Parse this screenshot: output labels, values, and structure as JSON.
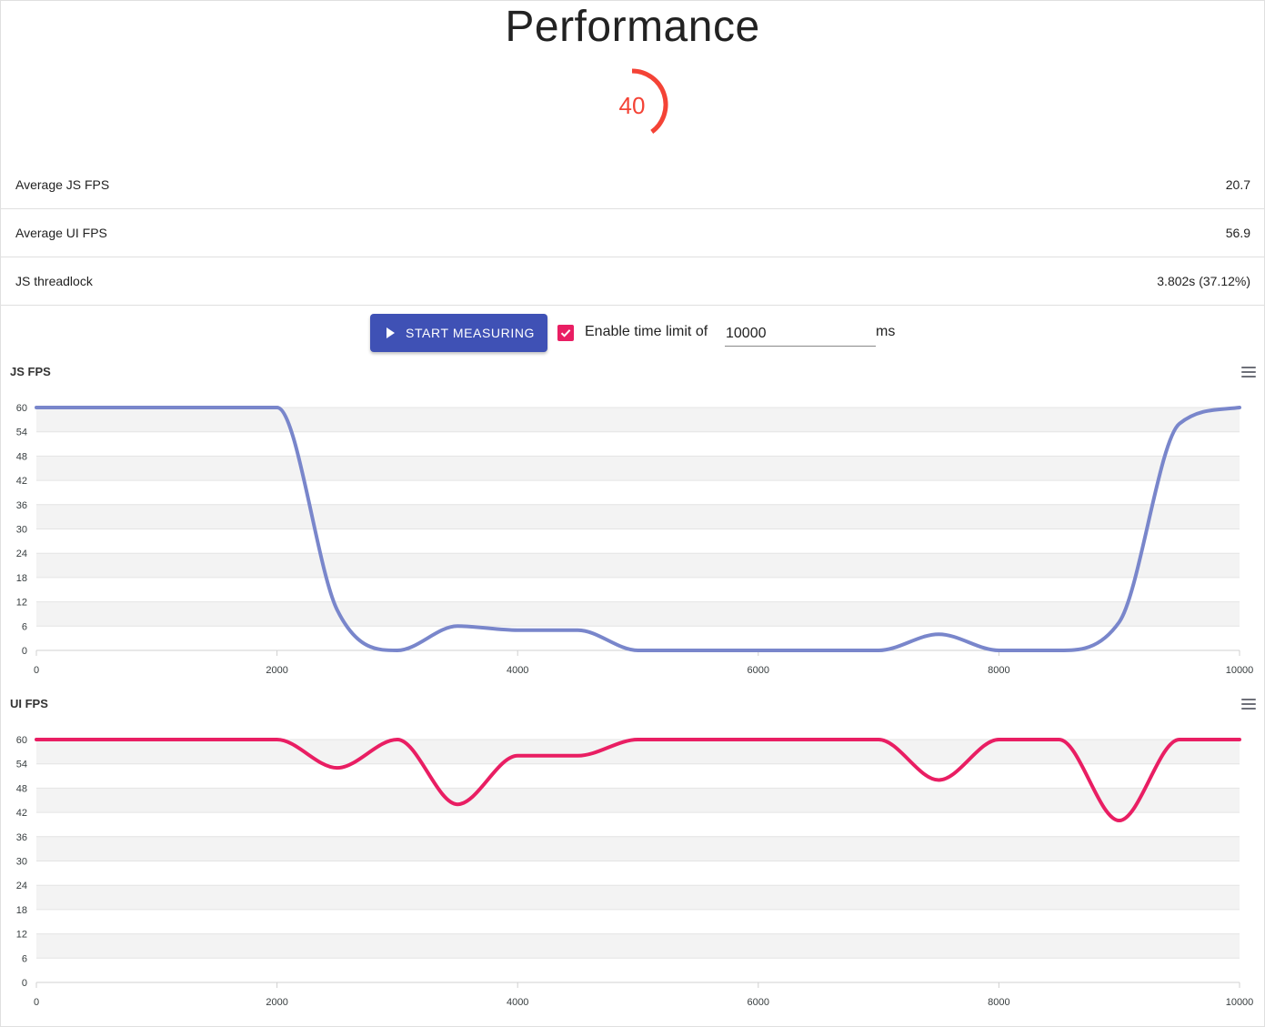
{
  "page": {
    "title": "Performance"
  },
  "gauge": {
    "value": "40",
    "color": "#f44336",
    "fraction": 0.4
  },
  "stats": [
    {
      "label": "Average JS FPS",
      "value": "20.7"
    },
    {
      "label": "Average UI FPS",
      "value": "56.9"
    },
    {
      "label": "JS threadlock",
      "value": "3.802s (37.12%)"
    }
  ],
  "controls": {
    "start_label": "START MEASURING",
    "enable_label": "Enable time limit of",
    "limit_checked": true,
    "limit_value": "10000",
    "unit": "ms",
    "button_color": "#3f51b5",
    "checkbox_color": "#e91e63",
    "start_icon": "play-icon",
    "checkbox_icon": "checkmark-icon",
    "menu_icon": "hamburger-menu-icon"
  },
  "chart_data": [
    {
      "type": "line",
      "title": "JS FPS",
      "color": "#7986cb",
      "xlim": [
        0,
        10000
      ],
      "ylim": [
        0,
        60
      ],
      "x_ticks": [
        "0",
        "2000",
        "4000",
        "6000",
        "8000",
        "10000"
      ],
      "y_ticks": [
        "60",
        "54",
        "48",
        "42",
        "36",
        "30",
        "24",
        "18",
        "12",
        "6",
        "0"
      ],
      "grid": true,
      "series": [
        {
          "x": [
            0,
            500,
            1000,
            1500,
            2000,
            2500,
            3000,
            3500,
            4000,
            4500,
            5000,
            5500,
            6000,
            6500,
            7000,
            7500,
            8000,
            8500,
            9000,
            9500,
            10000
          ],
          "values": [
            60,
            60,
            60,
            60,
            60,
            10,
            0,
            6,
            5,
            5,
            0,
            0,
            0,
            0,
            0,
            4,
            0,
            0,
            7,
            56,
            60
          ]
        }
      ]
    },
    {
      "type": "line",
      "title": "UI FPS",
      "color": "#e91e63",
      "xlim": [
        0,
        10000
      ],
      "ylim": [
        0,
        60
      ],
      "x_ticks": [
        "0",
        "2000",
        "4000",
        "6000",
        "8000",
        "10000"
      ],
      "y_ticks": [
        "60",
        "54",
        "48",
        "42",
        "36",
        "30",
        "24",
        "18",
        "12",
        "6",
        "0"
      ],
      "grid": true,
      "series": [
        {
          "x": [
            0,
            500,
            1000,
            1500,
            2000,
            2500,
            3000,
            3500,
            4000,
            4500,
            5000,
            5500,
            6000,
            6500,
            7000,
            7500,
            8000,
            8500,
            9000,
            9500,
            10000
          ],
          "values": [
            60,
            60,
            60,
            60,
            60,
            53,
            60,
            44,
            56,
            56,
            60,
            60,
            60,
            60,
            60,
            50,
            60,
            60,
            40,
            60,
            60
          ]
        }
      ]
    }
  ]
}
